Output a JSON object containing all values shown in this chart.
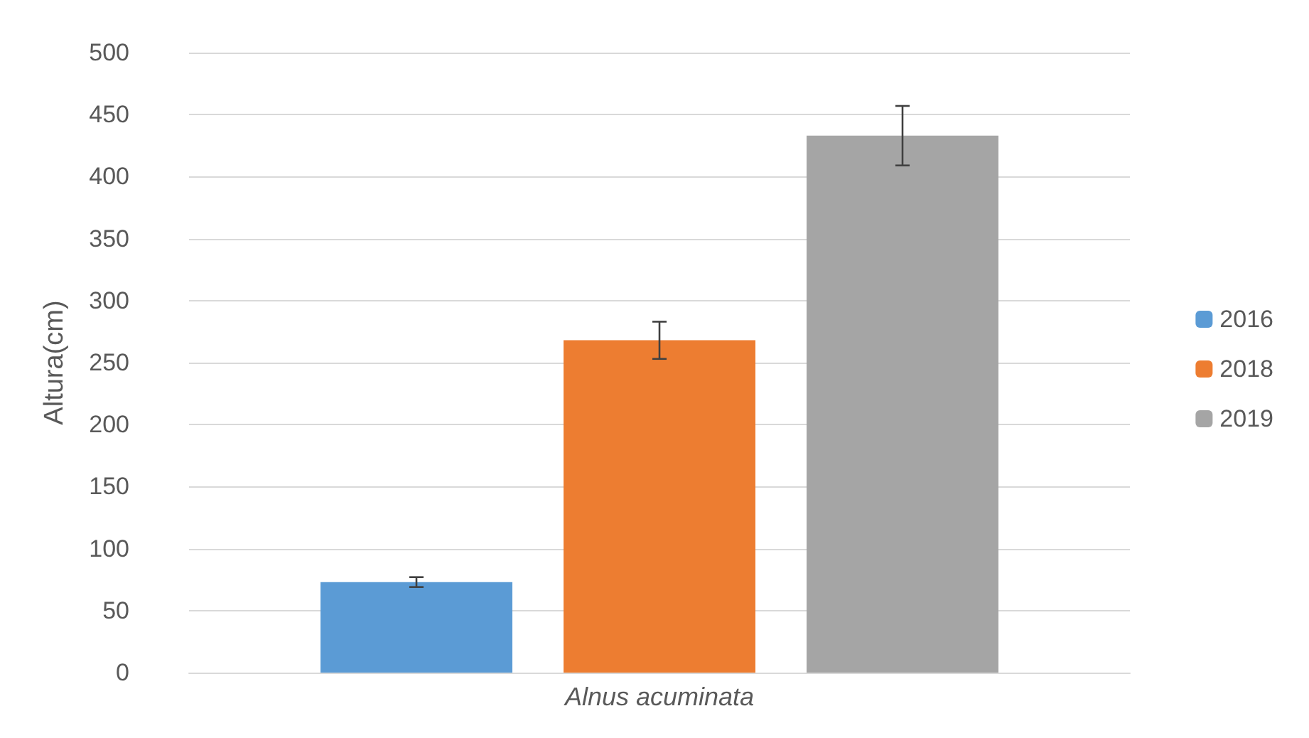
{
  "chart_data": {
    "type": "bar",
    "ylabel": "Altura(cm)",
    "categories": [
      "Alnus acuminata"
    ],
    "series": [
      {
        "name": "2016",
        "color": "#5b9bd5",
        "values": [
          73
        ],
        "errors": [
          4
        ]
      },
      {
        "name": "2018",
        "color": "#ed7d31",
        "values": [
          268
        ],
        "errors": [
          15
        ]
      },
      {
        "name": "2019",
        "color": "#a5a5a5",
        "values": [
          433
        ],
        "errors": [
          24
        ]
      }
    ],
    "ylim": [
      0,
      500
    ],
    "yticks": [
      0,
      50,
      100,
      150,
      200,
      250,
      300,
      350,
      400,
      450,
      500
    ],
    "grid": "y",
    "legend": "right"
  }
}
